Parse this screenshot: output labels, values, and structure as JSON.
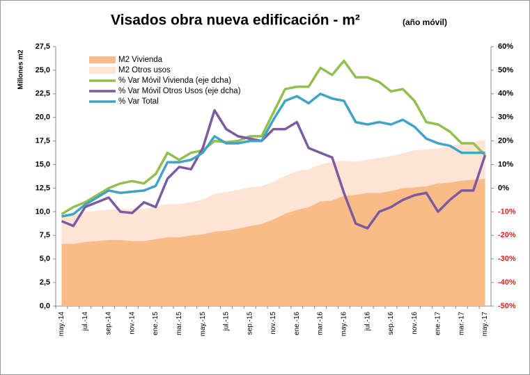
{
  "chart_data": {
    "type": "area_line",
    "title": "Visados obra nueva edificación - m²",
    "subtitle": "(año móvil)",
    "y_label": "Millones m2",
    "categories": [
      "may.-14",
      null,
      "jul.-14",
      null,
      "sep.-14",
      null,
      "nov.-14",
      null,
      "ene.-15",
      null,
      "mar.-15",
      null,
      "may.-15",
      null,
      "jul.-15",
      null,
      "sep.-15",
      null,
      "nov.-15",
      null,
      "ene.-16",
      null,
      "mar.-16",
      null,
      "may.-16",
      null,
      "jul.-16",
      null,
      "sep.-16",
      null,
      "nov.-16",
      null,
      "ene.-17",
      null,
      "mar.-17",
      null,
      "may.-17"
    ],
    "series": [
      {
        "name": "M2 Vivienda",
        "color": "#f9bb88",
        "kind": "area",
        "values": [
          6.6,
          6.6,
          6.8,
          6.9,
          7.0,
          7.0,
          6.9,
          6.9,
          7.1,
          7.3,
          7.3,
          7.5,
          7.6,
          7.9,
          8.0,
          8.2,
          8.5,
          8.7,
          9.2,
          9.8,
          10.2,
          10.5,
          11.1,
          11.2,
          11.7,
          11.8,
          12.0,
          12.0,
          12.2,
          12.5,
          12.6,
          12.7,
          13.0,
          13.1,
          13.3,
          13.4,
          13.5
        ]
      },
      {
        "name": "M2 Otros usos",
        "color": "#fde4d4",
        "kind": "area",
        "values": [
          3.0,
          3.2,
          3.2,
          3.2,
          3.2,
          3.3,
          3.4,
          3.4,
          3.5,
          3.5,
          3.5,
          3.5,
          3.7,
          4.0,
          4.1,
          4.1,
          4.1,
          4.0,
          4.0,
          4.0,
          4.1,
          4.0,
          3.9,
          4.1,
          3.7,
          3.5,
          3.5,
          3.7,
          3.7,
          3.7,
          3.9,
          3.9,
          3.7,
          3.8,
          3.9,
          4.0,
          4.1
        ]
      },
      {
        "name": "% Var Móvil Vivienda (eje dcha)",
        "color": "#92bf4e",
        "kind": "line",
        "axis": "y2",
        "values": [
          -11,
          -8,
          -6,
          -3,
          0,
          2,
          3,
          2,
          6,
          15,
          12,
          15,
          16,
          20,
          19.5,
          20,
          22,
          22,
          32,
          42,
          43,
          43,
          51,
          48,
          54,
          47,
          47,
          45,
          41,
          42,
          37,
          28,
          27,
          24,
          19,
          19,
          14
        ]
      },
      {
        "name": "% Var Móvil Otros Usos (eje dcha)",
        "color": "#7b5a9e",
        "kind": "line",
        "axis": "y2",
        "values": [
          -14,
          -16,
          -8,
          -6,
          -4,
          -10,
          -10.5,
          -6,
          -8,
          4,
          9,
          8,
          17,
          33,
          25,
          22,
          21,
          20,
          25,
          25,
          28,
          17,
          15,
          13,
          -2,
          -15,
          -17,
          -10,
          -8,
          -5,
          -3,
          -2,
          -10,
          -5,
          -1,
          -1,
          14
        ]
      },
      {
        "name": "% Var Total",
        "color": "#41a4c2",
        "kind": "line",
        "axis": "y2",
        "values": [
          -12,
          -11,
          -7,
          -4,
          -1,
          -2,
          -1.5,
          -1,
          1,
          11,
          11,
          12,
          15,
          22,
          19,
          19,
          20,
          20,
          29,
          37,
          39,
          36,
          40,
          38,
          37,
          28,
          27,
          28,
          27,
          29,
          26,
          21,
          19,
          18,
          15,
          15,
          15
        ]
      }
    ],
    "ylim": [
      0,
      27.5
    ],
    "yticks": [
      {
        "value": 0,
        "label": "0,0"
      },
      {
        "value": 2.5,
        "label": "2,5"
      },
      {
        "value": 5,
        "label": "5,0"
      },
      {
        "value": 7.5,
        "label": "7,5"
      },
      {
        "value": 10,
        "label": "10,0"
      },
      {
        "value": 12.5,
        "label": "12,5"
      },
      {
        "value": 15,
        "label": "15,0"
      },
      {
        "value": 17.5,
        "label": "17,5"
      },
      {
        "value": 20,
        "label": "20,0"
      },
      {
        "value": 22.5,
        "label": "22,5"
      },
      {
        "value": 25,
        "label": "25,0"
      },
      {
        "value": 27.5,
        "label": "27,5"
      }
    ],
    "y2lim": [
      -50,
      60
    ],
    "y2ticks": [
      {
        "value": -50,
        "label": "-50%"
      },
      {
        "value": -40,
        "label": "-40%"
      },
      {
        "value": -30,
        "label": "-30%"
      },
      {
        "value": -20,
        "label": "-20%"
      },
      {
        "value": -10,
        "label": "-10%"
      },
      {
        "value": 0,
        "label": "0%"
      },
      {
        "value": 10,
        "label": "10%"
      },
      {
        "value": 20,
        "label": "20%"
      },
      {
        "value": 30,
        "label": "30%"
      },
      {
        "value": 40,
        "label": "40%"
      },
      {
        "value": 50,
        "label": "50%"
      },
      {
        "value": 60,
        "label": "60%"
      }
    ],
    "negative_tick_color": "#e02020",
    "legend": "top-left",
    "grid": false
  }
}
